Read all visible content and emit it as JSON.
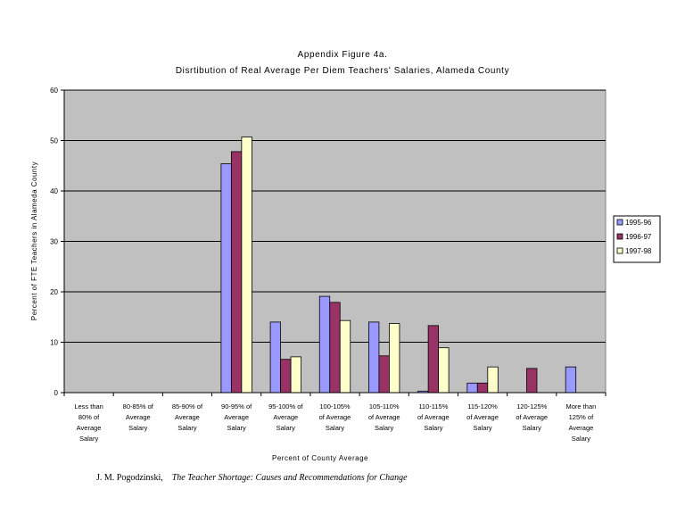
{
  "chart_data": {
    "type": "bar",
    "title": "Appendix Figure 4a.",
    "subtitle": "Disrtibution of Real Average Per Diem Teachers' Salaries, Alameda County",
    "xlabel": "Percent of County Average",
    "ylabel": "Percent of FTE Teachers in Alameda County",
    "ylim": [
      0,
      60
    ],
    "yticks": [
      "0",
      "10",
      "20",
      "30",
      "40",
      "50",
      "60"
    ],
    "grid": true,
    "legend_position": "right",
    "categories": [
      [
        "Less than",
        "80% of",
        "Average",
        "Salary"
      ],
      [
        "80-85% of",
        "Average",
        "Salary"
      ],
      [
        "85-90% of",
        "Average",
        "Salary"
      ],
      [
        "90-95% of",
        "Average",
        "Salary"
      ],
      [
        "95-100% of",
        "Average",
        "Salary"
      ],
      [
        "100-105%",
        "of Average",
        "Salary"
      ],
      [
        "105-110%",
        "of Average",
        "Salary"
      ],
      [
        "110-115%",
        "of Average",
        "Salary"
      ],
      [
        "115-120%",
        "of Average",
        "Salary"
      ],
      [
        "120-125%",
        "of Average",
        "Salary"
      ],
      [
        "More than",
        "125% of",
        "Average",
        "Salary"
      ]
    ],
    "series": [
      {
        "name": "1995-96",
        "color": "#9999ff",
        "values": [
          0,
          0,
          0,
          45.4,
          14,
          19.1,
          14,
          0.3,
          1.9,
          0,
          5.1
        ]
      },
      {
        "name": "1996-97",
        "color": "#993366",
        "values": [
          0,
          0,
          0,
          47.8,
          6.6,
          17.9,
          7.3,
          13.3,
          1.9,
          4.8,
          0
        ]
      },
      {
        "name": "1997-98",
        "color": "#ffffcc",
        "values": [
          0,
          0,
          0,
          50.7,
          7.1,
          14.3,
          13.7,
          8.9,
          5.1,
          0,
          0
        ]
      }
    ],
    "plot_background": "#c0c0c0"
  },
  "footer": {
    "author": "J. M. Pogodzinski,",
    "book": "The Teacher Shortage: Causes and Recommendations for Change"
  }
}
